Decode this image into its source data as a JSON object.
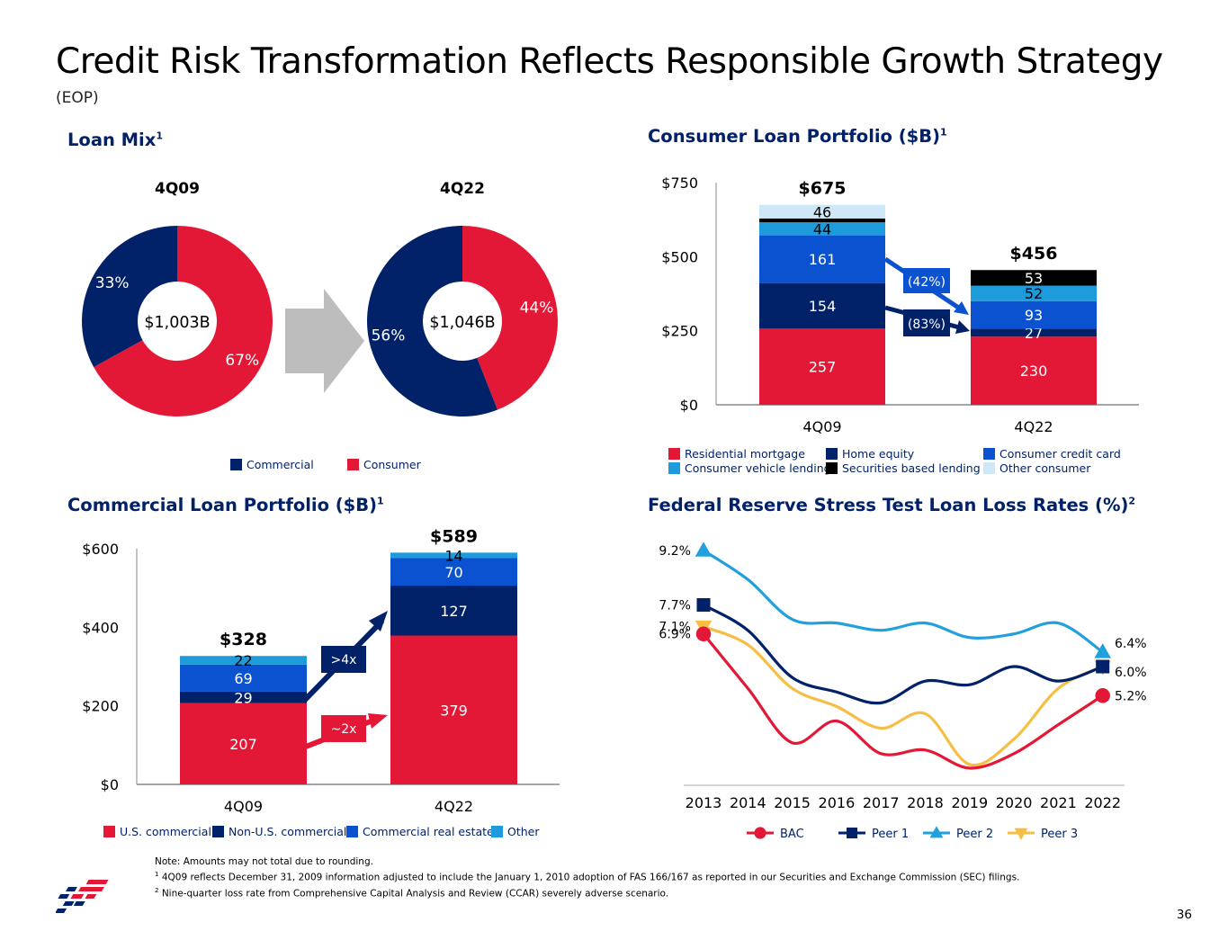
{
  "page": {
    "title": "Credit Risk Transformation Reflects Responsible Growth Strategy",
    "subtitle": "(EOP)",
    "page_number": "36",
    "notes": [
      "Note: Amounts may not total due to rounding.",
      "4Q09 reflects December 31, 2009 information adjusted to include the January 1, 2010 adoption of FAS 166/167 as reported in our Securities and Exchange Commission (SEC) filings.",
      "Nine-quarter loss rate from Comprehensive Capital Analysis and Review (CCAR) severely adverse scenario."
    ],
    "note_markers": [
      "1",
      "2"
    ]
  },
  "colors": {
    "red": "#E31837",
    "navy": "#012169",
    "blue": "#0A52CF",
    "cyan": "#1E9BDB",
    "light": "#CFE8F7",
    "black": "#000000",
    "peer2": "#22A0DE",
    "peer3": "#F6BE45",
    "arrow_gray": "#BDBDBD"
  },
  "loan_mix": {
    "title": "Loan Mix",
    "title_sup": "1",
    "legend": [
      "Commercial",
      "Consumer"
    ]
  },
  "consumer_portfolio": {
    "title": "Consumer Loan Portfolio ($B)",
    "title_sup": "1",
    "legend": [
      "Residential mortgage",
      "Home equity",
      "Consumer credit card",
      "Consumer vehicle lending",
      "Securities based lending",
      "Other consumer"
    ],
    "change_labels": [
      "(42%)",
      "(83%)"
    ]
  },
  "commercial_portfolio": {
    "title": "Commercial Loan Portfolio ($B)",
    "title_sup": "1",
    "legend": [
      "U.S. commercial",
      "Non-U.S. commercial",
      "Commercial real estate",
      "Other"
    ],
    "change_labels": [
      ">4x",
      "~2x"
    ]
  },
  "stress_test": {
    "title": "Federal Reserve Stress Test Loan Loss Rates (%)",
    "title_sup": "2"
  },
  "chart_data": [
    {
      "id": "loan_mix",
      "type": "pie",
      "donuts": [
        {
          "label": "4Q09",
          "total": "$1,003B",
          "slices": [
            {
              "name": "Commercial",
              "value": 33,
              "label": "33%"
            },
            {
              "name": "Consumer",
              "value": 67,
              "label": "67%"
            }
          ]
        },
        {
          "label": "4Q22",
          "total": "$1,046B",
          "slices": [
            {
              "name": "Commercial",
              "value": 56,
              "label": "56%"
            },
            {
              "name": "Consumer",
              "value": 44,
              "label": "44%"
            }
          ]
        }
      ]
    },
    {
      "id": "consumer",
      "type": "bar",
      "stacked": true,
      "categories": [
        "4Q09",
        "4Q22"
      ],
      "totals": [
        "$675",
        "$456"
      ],
      "ylim": [
        0,
        750
      ],
      "yticks": [
        "$0",
        "$250",
        "$500",
        "$750"
      ],
      "series": [
        {
          "name": "Residential mortgage",
          "values": [
            257,
            230
          ],
          "labels": [
            "257",
            "230"
          ]
        },
        {
          "name": "Home equity",
          "values": [
            154,
            27
          ],
          "labels": [
            "154",
            "27"
          ]
        },
        {
          "name": "Consumer credit card",
          "values": [
            161,
            93
          ],
          "labels": [
            "161",
            "93"
          ]
        },
        {
          "name": "Consumer vehicle lending",
          "values": [
            44,
            52
          ],
          "labels": [
            "44",
            "52"
          ]
        },
        {
          "name": "Securities based lending",
          "values": [
            13,
            53
          ],
          "labels": [
            "",
            "53"
          ]
        },
        {
          "name": "Other consumer",
          "values": [
            46,
            1
          ],
          "labels": [
            "46",
            ""
          ]
        }
      ]
    },
    {
      "id": "commercial",
      "type": "bar",
      "stacked": true,
      "categories": [
        "4Q09",
        "4Q22"
      ],
      "totals": [
        "$328",
        "$589"
      ],
      "ylim": [
        0,
        600
      ],
      "yticks": [
        "$0",
        "$200",
        "$400",
        "$600"
      ],
      "series": [
        {
          "name": "U.S. commercial",
          "values": [
            207,
            379
          ],
          "labels": [
            "207",
            "379"
          ]
        },
        {
          "name": "Non-U.S. commercial",
          "values": [
            29,
            127
          ],
          "labels": [
            "29",
            "127"
          ]
        },
        {
          "name": "Commercial real estate",
          "values": [
            69,
            70
          ],
          "labels": [
            "69",
            "70"
          ]
        },
        {
          "name": "Other",
          "values": [
            22,
            14
          ],
          "labels": [
            "22",
            "14"
          ]
        }
      ]
    },
    {
      "id": "stress",
      "type": "line",
      "x": [
        "2013",
        "2014",
        "2015",
        "2016",
        "2017",
        "2018",
        "2019",
        "2020",
        "2021",
        "2022"
      ],
      "series": [
        {
          "name": "BAC",
          "values": [
            6.9,
            5.4,
            3.9,
            4.5,
            3.6,
            3.7,
            3.2,
            3.6,
            4.4,
            5.2
          ],
          "start_label": "6.9%",
          "end_label": "5.2%"
        },
        {
          "name": "Peer 1",
          "values": [
            7.7,
            7.0,
            5.7,
            5.3,
            5.0,
            5.6,
            5.5,
            6.0,
            5.6,
            6.0
          ],
          "start_label": "7.7%",
          "end_label": "6.0%"
        },
        {
          "name": "Peer 2",
          "values": [
            9.2,
            8.4,
            7.3,
            7.2,
            7.0,
            7.2,
            6.8,
            6.9,
            7.2,
            6.4
          ],
          "start_label": "9.2%",
          "end_label": "6.4%"
        },
        {
          "name": "Peer 3",
          "values": [
            7.1,
            6.6,
            5.4,
            4.9,
            4.3,
            4.7,
            3.3,
            4.0,
            5.4,
            6.0
          ],
          "start_label": "7.1%",
          "end_label": ""
        }
      ]
    }
  ]
}
